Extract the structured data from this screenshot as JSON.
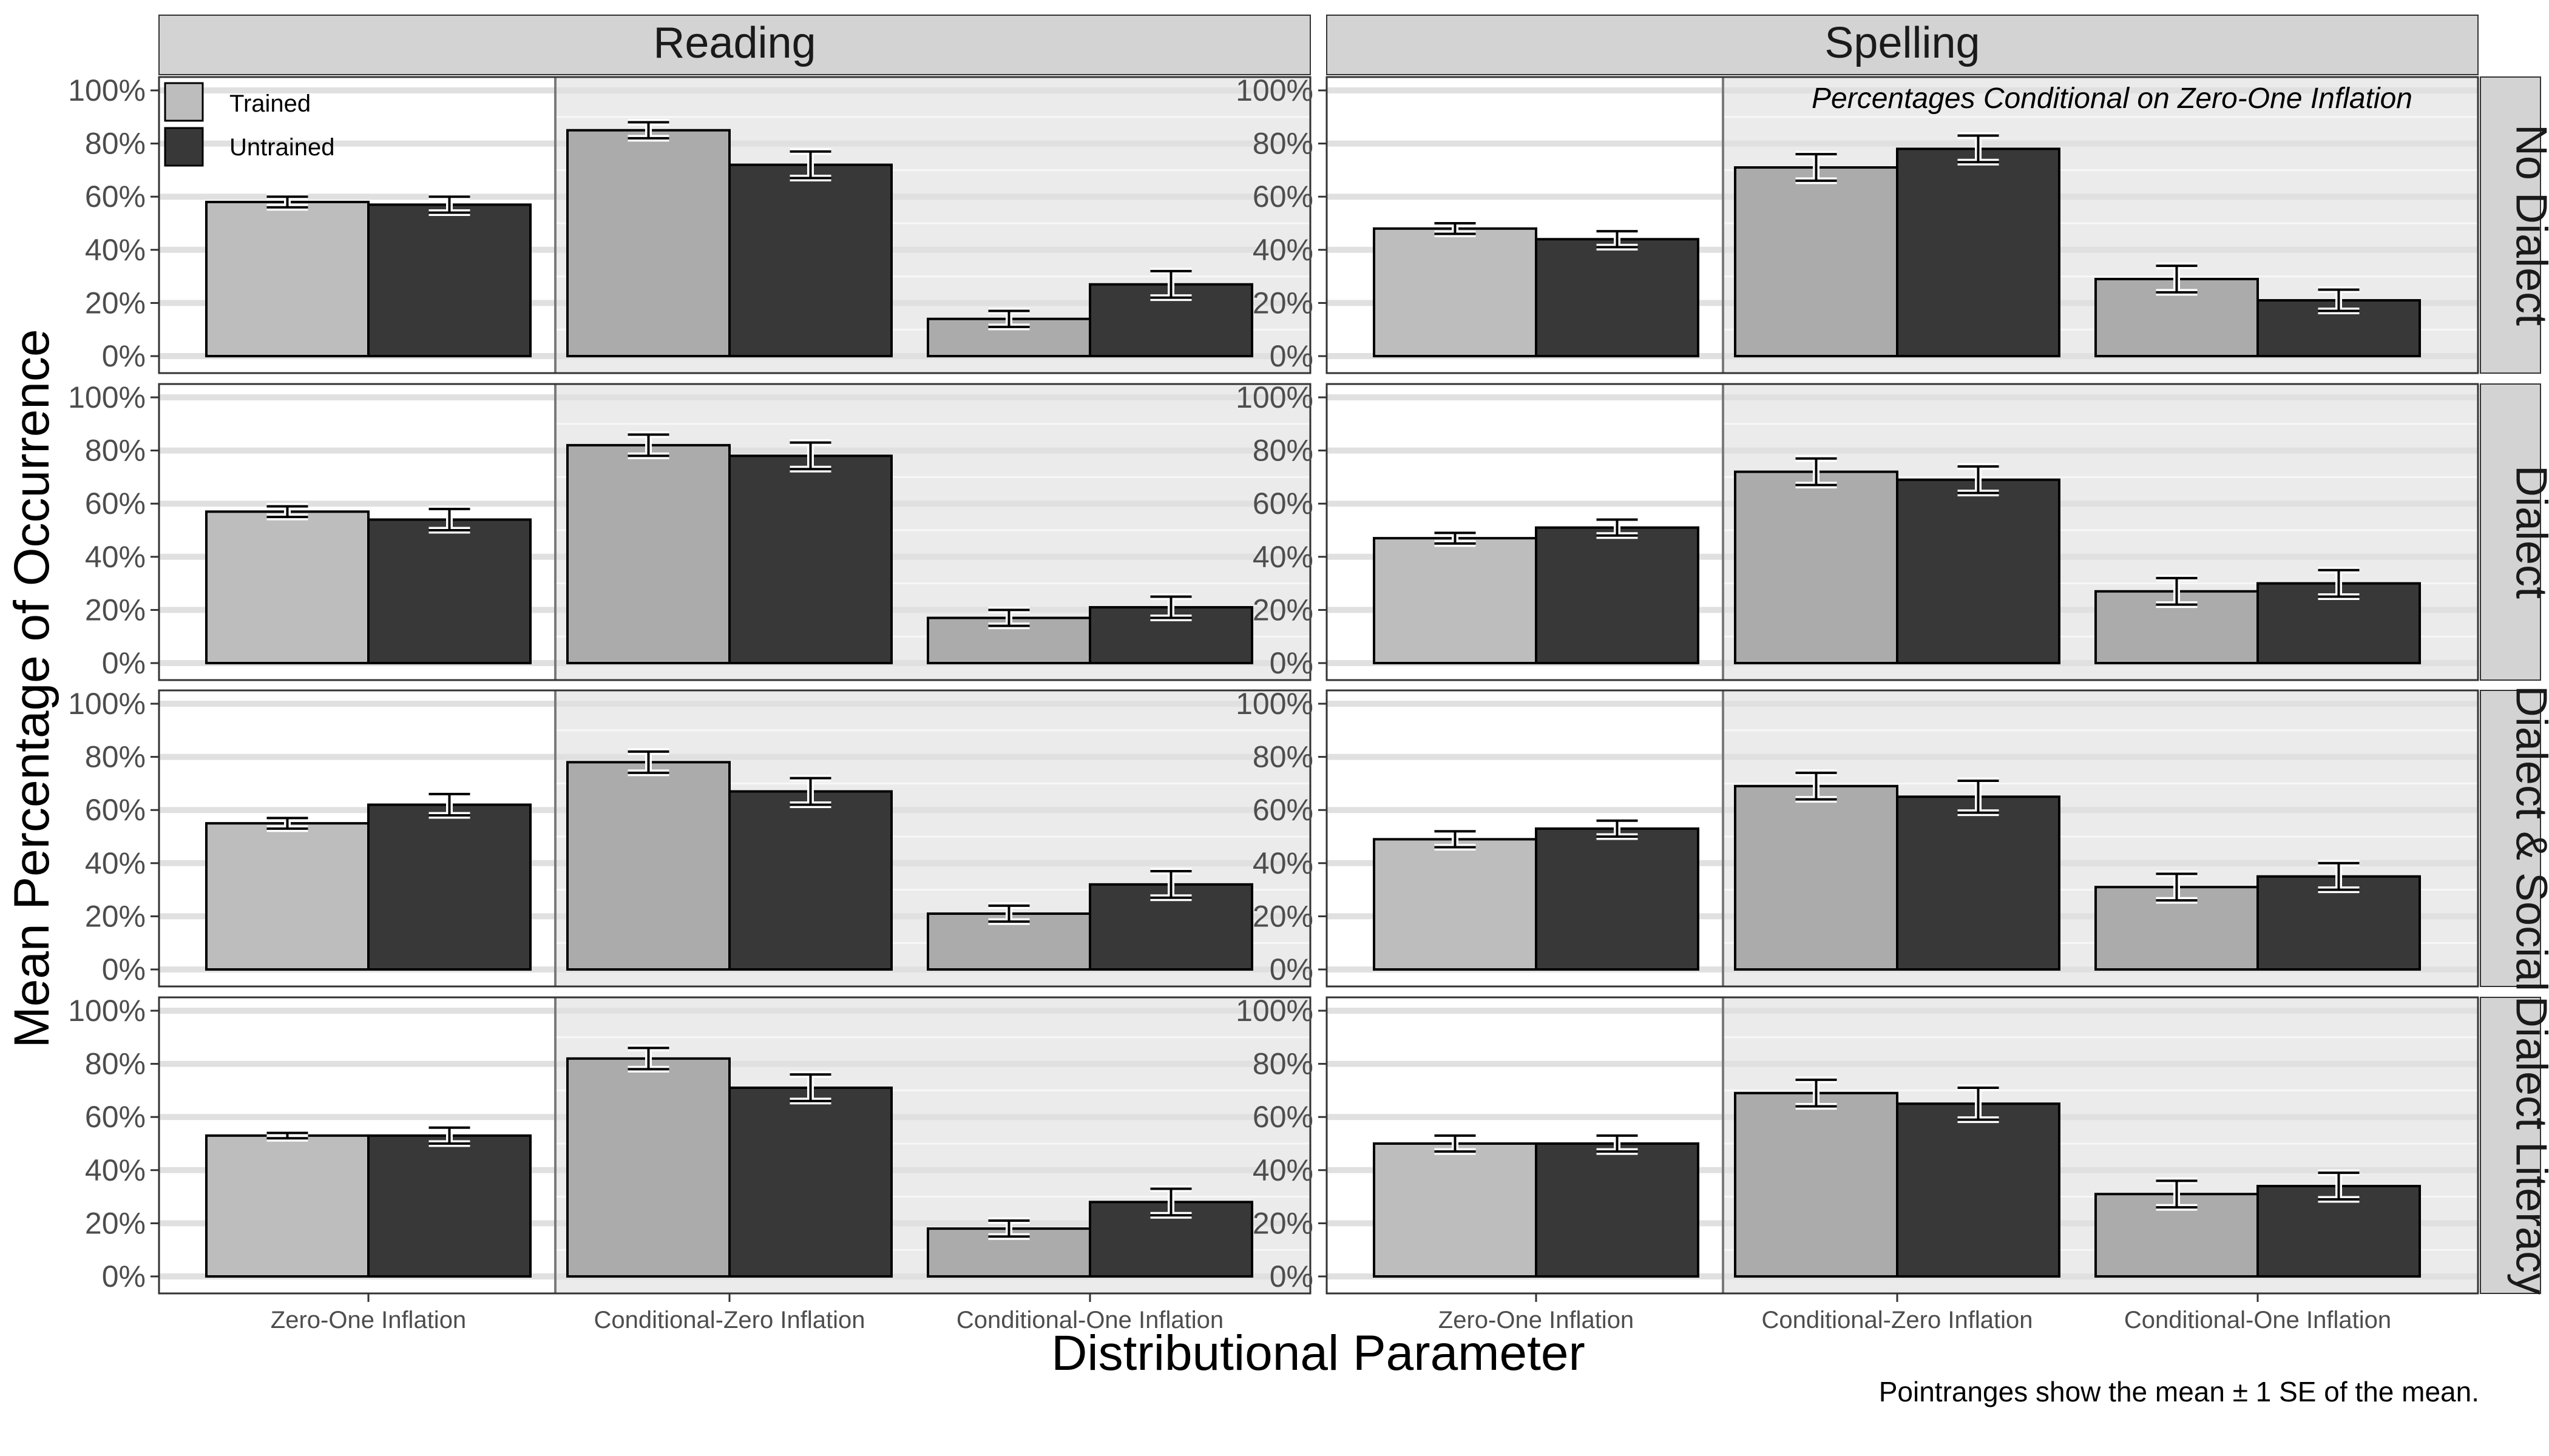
{
  "colors": {
    "trained": "#bdbdbd",
    "trained_conditional": "#ababab",
    "untrained": "#383838",
    "panel_bg_conditional": "#ebebeb",
    "strip_bg": "#d3d3d3",
    "gridline": "#e0e0e0",
    "errorbar_outer": "#000000",
    "errorbar_inner": "#ffffff"
  },
  "chart_data": {
    "type": "bar",
    "xlabel": "Distributional Parameter",
    "ylabel": "Mean Percentage of Occurrence",
    "ylim": [
      0,
      100
    ],
    "yticks": [
      "0%",
      "20%",
      "40%",
      "60%",
      "80%",
      "100%"
    ],
    "categories": [
      "Zero-One Inflation",
      "Conditional-Zero Inflation",
      "Conditional-One Inflation"
    ],
    "columns": [
      "Reading",
      "Spelling"
    ],
    "rows": [
      "No Dialect",
      "Dialect",
      "Dialect & Social",
      "Dialect Literacy"
    ],
    "series_names": [
      "Trained",
      "Untrained"
    ],
    "legend": {
      "position": "top-left",
      "entries": [
        "Trained",
        "Untrained"
      ]
    },
    "annotation": "Percentages Conditional on Zero-One Inflation",
    "caption": "Pointranges show the mean ± 1 SE of the mean.",
    "error_bars": "mean ± 1 SE",
    "panels": [
      {
        "column": "Reading",
        "row": "No Dialect",
        "series": [
          {
            "name": "Trained",
            "values": [
              58,
              85,
              14
            ],
            "se": [
              2,
              3,
              3
            ]
          },
          {
            "name": "Untrained",
            "values": [
              57,
              72,
              27
            ],
            "se": [
              3,
              5,
              5
            ]
          }
        ]
      },
      {
        "column": "Spelling",
        "row": "No Dialect",
        "series": [
          {
            "name": "Trained",
            "values": [
              48,
              71,
              29
            ],
            "se": [
              2,
              5,
              5
            ]
          },
          {
            "name": "Untrained",
            "values": [
              44,
              78,
              21
            ],
            "se": [
              3,
              5,
              4
            ]
          }
        ]
      },
      {
        "column": "Reading",
        "row": "Dialect",
        "series": [
          {
            "name": "Trained",
            "values": [
              57,
              82,
              17
            ],
            "se": [
              2,
              4,
              3
            ]
          },
          {
            "name": "Untrained",
            "values": [
              54,
              78,
              21
            ],
            "se": [
              4,
              5,
              4
            ]
          }
        ]
      },
      {
        "column": "Spelling",
        "row": "Dialect",
        "series": [
          {
            "name": "Trained",
            "values": [
              47,
              72,
              27
            ],
            "se": [
              2,
              5,
              5
            ]
          },
          {
            "name": "Untrained",
            "values": [
              51,
              69,
              30
            ],
            "se": [
              3,
              5,
              5
            ]
          }
        ]
      },
      {
        "column": "Reading",
        "row": "Dialect & Social",
        "series": [
          {
            "name": "Trained",
            "values": [
              55,
              78,
              21
            ],
            "se": [
              2,
              4,
              3
            ]
          },
          {
            "name": "Untrained",
            "values": [
              62,
              67,
              32
            ],
            "se": [
              4,
              5,
              5
            ]
          }
        ]
      },
      {
        "column": "Spelling",
        "row": "Dialect & Social",
        "series": [
          {
            "name": "Trained",
            "values": [
              49,
              69,
              31
            ],
            "se": [
              3,
              5,
              5
            ]
          },
          {
            "name": "Untrained",
            "values": [
              53,
              65,
              35
            ],
            "se": [
              3,
              6,
              5
            ]
          }
        ]
      },
      {
        "column": "Reading",
        "row": "Dialect Literacy",
        "series": [
          {
            "name": "Trained",
            "values": [
              53,
              82,
              18
            ],
            "se": [
              1,
              4,
              3
            ]
          },
          {
            "name": "Untrained",
            "values": [
              53,
              71,
              28
            ],
            "se": [
              3,
              5,
              5
            ]
          }
        ]
      },
      {
        "column": "Spelling",
        "row": "Dialect Literacy",
        "series": [
          {
            "name": "Trained",
            "values": [
              50,
              69,
              31
            ],
            "se": [
              3,
              5,
              5
            ]
          },
          {
            "name": "Untrained",
            "values": [
              50,
              65,
              34
            ],
            "se": [
              3,
              6,
              5
            ]
          }
        ]
      }
    ]
  }
}
